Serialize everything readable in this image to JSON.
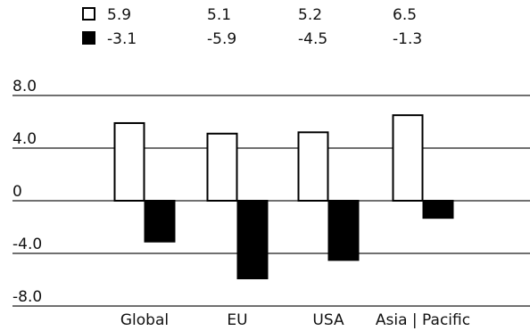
{
  "chart_data": {
    "type": "bar",
    "categories": [
      "Global",
      "EU",
      "USA",
      "Asia | Pacific"
    ],
    "series": [
      {
        "values": [
          5.9,
          5.1,
          5.2,
          6.5
        ],
        "fill": "#ffffff",
        "stroke": "#000000"
      },
      {
        "values": [
          -3.1,
          -5.9,
          -4.5,
          -1.3
        ],
        "fill": "#000000",
        "stroke": "#000000"
      }
    ],
    "legend_rows": [
      {
        "values_text": [
          "5.9",
          "5.1",
          "5.2",
          "6.5"
        ]
      },
      {
        "values_text": [
          "-3.1",
          "-5.9",
          "-4.5",
          "-1.3"
        ]
      }
    ],
    "yticks": [
      8.0,
      4.0,
      0,
      -4.0,
      -8.0
    ],
    "ytick_labels": [
      "8.0",
      "4.0",
      "0",
      "-4.0",
      "-8.0"
    ],
    "ylim": [
      -8.0,
      8.0
    ],
    "grid": true,
    "legend_position": "top"
  }
}
